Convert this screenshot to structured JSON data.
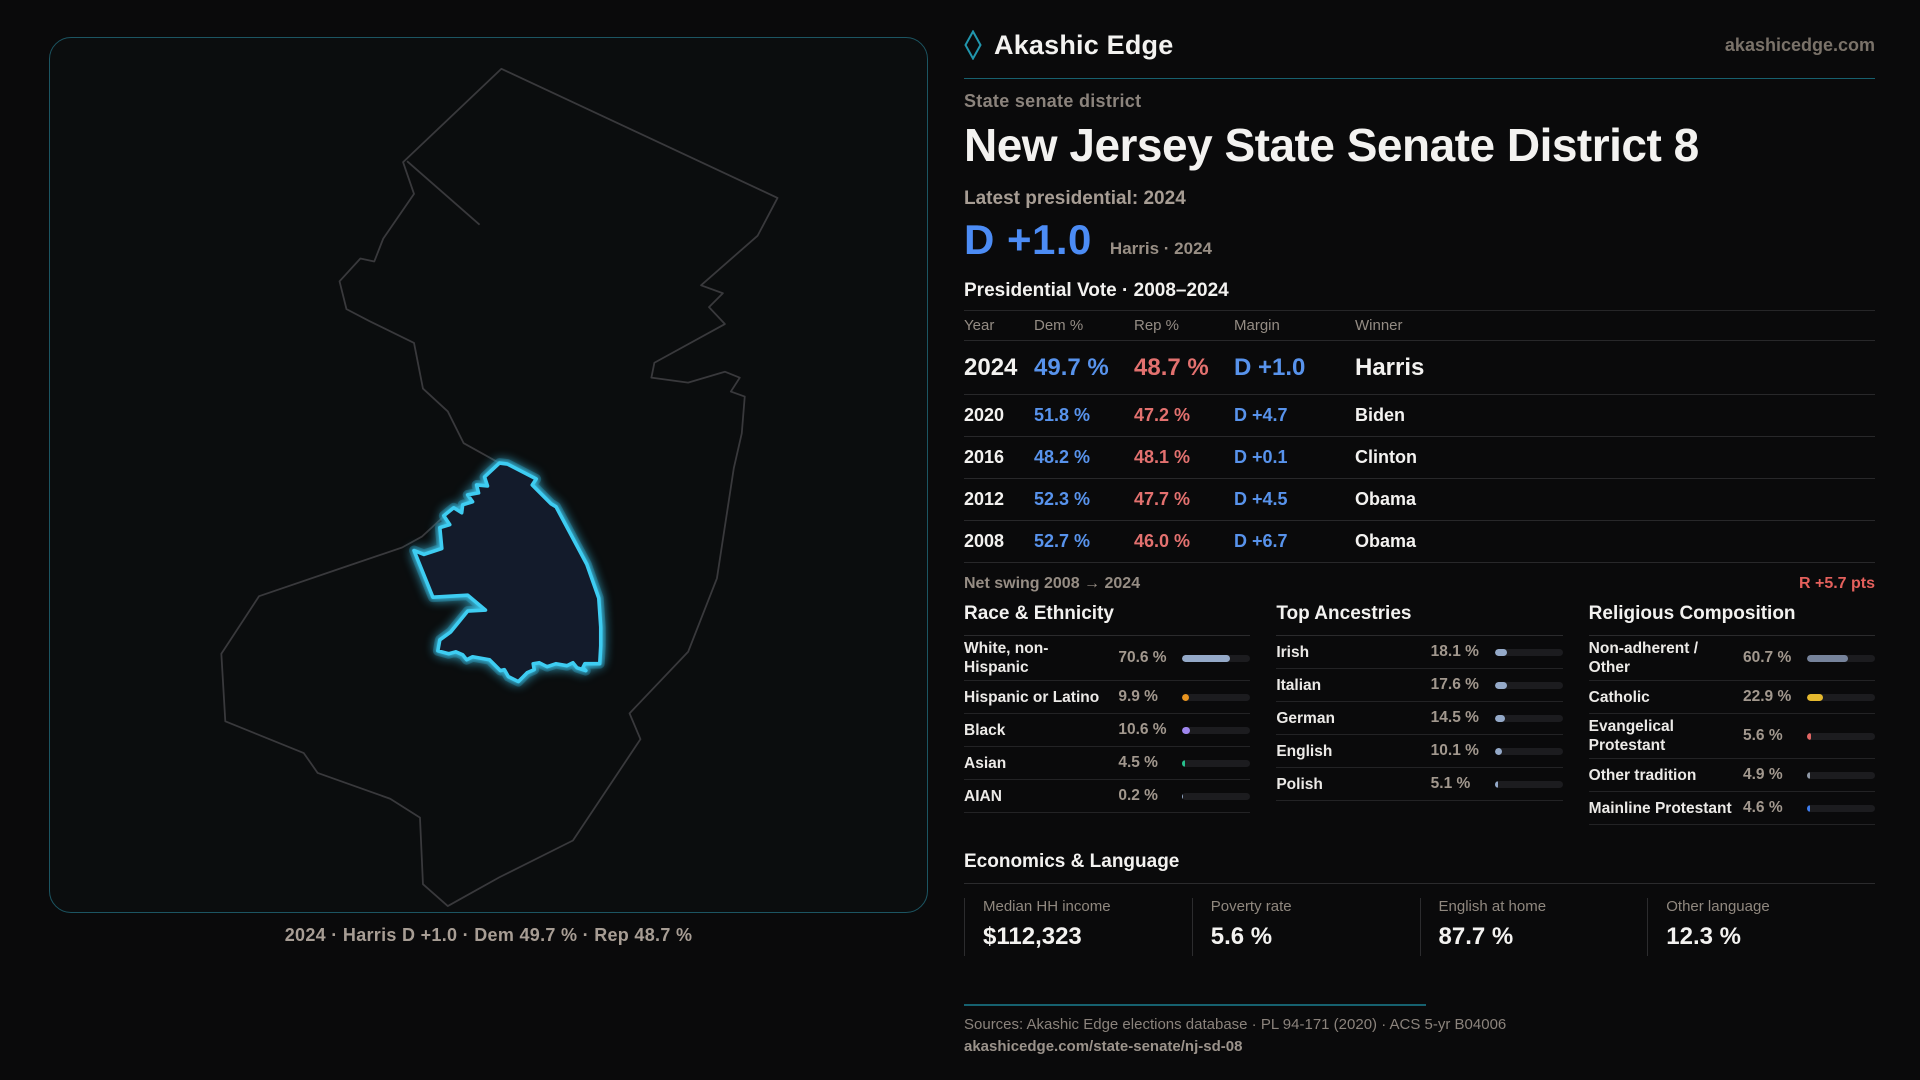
{
  "brand": {
    "logo": "diamond-icon",
    "name": "Akashic Edge",
    "site": "akashicedge.com"
  },
  "page": {
    "kicker": "State senate district",
    "title": "New Jersey State Senate District 8"
  },
  "headline": {
    "label": "Latest presidential: 2024",
    "margin": "D +1.0",
    "sub": "Harris · 2024"
  },
  "table": {
    "title": "Presidential Vote · 2008–2024",
    "columns": {
      "year": "Year",
      "dem": "Dem %",
      "rep": "Rep %",
      "margin": "Margin",
      "winner": "Winner"
    },
    "rows": [
      {
        "year": "2024",
        "dem": "49.7 %",
        "rep": "48.7 %",
        "margin": "D +1.0",
        "winner": "Harris"
      },
      {
        "year": "2020",
        "dem": "51.8 %",
        "rep": "47.2 %",
        "margin": "D +4.7",
        "winner": "Biden"
      },
      {
        "year": "2016",
        "dem": "48.2 %",
        "rep": "48.1 %",
        "margin": "D +0.1",
        "winner": "Clinton"
      },
      {
        "year": "2012",
        "dem": "52.3 %",
        "rep": "47.7 %",
        "margin": "D +4.5",
        "winner": "Obama"
      },
      {
        "year": "2008",
        "dem": "52.7 %",
        "rep": "46.0 %",
        "margin": "D +6.7",
        "winner": "Obama"
      }
    ]
  },
  "net_swing": {
    "label": "Net swing 2008 → 2024",
    "value": "R +5.7 pts"
  },
  "race": {
    "title": "Race & Ethnicity",
    "rows": [
      {
        "label": "White, non-Hispanic",
        "value": "70.6 %",
        "pct": 70.6,
        "color": "#94a9c8"
      },
      {
        "label": "Hispanic or Latino",
        "value": "9.9 %",
        "pct": 9.9,
        "color": "#e8941f"
      },
      {
        "label": "Black",
        "value": "10.6 %",
        "pct": 10.6,
        "color": "#9f86ee"
      },
      {
        "label": "Asian",
        "value": "4.5 %",
        "pct": 4.5,
        "color": "#27c08d"
      },
      {
        "label": "AIAN",
        "value": "0.2 %",
        "pct": 0.2,
        "color": "#94a9c8"
      }
    ]
  },
  "ancestries": {
    "title": "Top Ancestries",
    "rows": [
      {
        "label": "Irish",
        "value": "18.1 %",
        "pct": 18.1,
        "color": "#94a9c8"
      },
      {
        "label": "Italian",
        "value": "17.6 %",
        "pct": 17.6,
        "color": "#94a9c8"
      },
      {
        "label": "German",
        "value": "14.5 %",
        "pct": 14.5,
        "color": "#94a9c8"
      },
      {
        "label": "English",
        "value": "10.1 %",
        "pct": 10.1,
        "color": "#94a9c8"
      },
      {
        "label": "Polish",
        "value": "5.1 %",
        "pct": 5.1,
        "color": "#94a9c8"
      }
    ]
  },
  "religion": {
    "title": "Religious Composition",
    "rows": [
      {
        "label": "Non-adherent / Other",
        "value": "60.7 %",
        "pct": 60.7,
        "color": "#76839b"
      },
      {
        "label": "Catholic",
        "value": "22.9 %",
        "pct": 22.9,
        "color": "#e5b92e"
      },
      {
        "label": "Evangelical Protestant",
        "value": "5.6 %",
        "pct": 5.6,
        "color": "#e06563"
      },
      {
        "label": "Other tradition",
        "value": "4.9 %",
        "pct": 4.9,
        "color": "#8f98a6"
      },
      {
        "label": "Mainline Protestant",
        "value": "4.6 %",
        "pct": 4.6,
        "color": "#3d7ced"
      }
    ]
  },
  "economics": {
    "title": "Economics & Language",
    "stats": [
      {
        "label": "Median HH income",
        "value": "$112,323"
      },
      {
        "label": "Poverty rate",
        "value": "5.6 %"
      },
      {
        "label": "English at home",
        "value": "87.7 %"
      },
      {
        "label": "Other language",
        "value": "12.3 %"
      }
    ]
  },
  "map": {
    "caption": "2024 · Harris D +1.0 · Dem 49.7 % · Rep 48.7 %",
    "district_color": "#3ecdf2",
    "state": "New Jersey"
  },
  "footer": {
    "sources": "Sources: Akashic Edge elections database · PL 94-171 (2020) · ACS 5-yr B04006",
    "url": "akashicedge.com/state-senate/nj-sd-08"
  },
  "chart_data": [
    {
      "type": "table",
      "title": "Presidential Vote · 2008–2024",
      "columns": [
        "Year",
        "Dem %",
        "Rep %",
        "Margin",
        "Winner"
      ],
      "rows": [
        [
          "2024",
          49.7,
          48.7,
          "D +1.0",
          "Harris"
        ],
        [
          "2020",
          51.8,
          47.2,
          "D +4.7",
          "Biden"
        ],
        [
          "2016",
          48.2,
          48.1,
          "D +0.1",
          "Clinton"
        ],
        [
          "2012",
          52.3,
          47.7,
          "D +4.5",
          "Obama"
        ],
        [
          "2008",
          52.7,
          46.0,
          "D +6.7",
          "Obama"
        ]
      ],
      "annotations": [
        "Net swing 2008 → 2024: R +5.7 pts",
        "Latest presidential 2024: D +1.0 (Harris)"
      ]
    },
    {
      "type": "bar",
      "title": "Race & Ethnicity",
      "categories": [
        "White, non-Hispanic",
        "Hispanic or Latino",
        "Black",
        "Asian",
        "AIAN"
      ],
      "values": [
        70.6,
        9.9,
        10.6,
        4.5,
        0.2
      ],
      "unit": "%",
      "xlim": [
        0,
        100
      ],
      "orientation": "horizontal"
    },
    {
      "type": "bar",
      "title": "Top Ancestries",
      "categories": [
        "Irish",
        "Italian",
        "German",
        "English",
        "Polish"
      ],
      "values": [
        18.1,
        17.6,
        14.5,
        10.1,
        5.1
      ],
      "unit": "%",
      "xlim": [
        0,
        100
      ],
      "orientation": "horizontal"
    },
    {
      "type": "bar",
      "title": "Religious Composition",
      "categories": [
        "Non-adherent / Other",
        "Catholic",
        "Evangelical Protestant",
        "Other tradition",
        "Mainline Protestant"
      ],
      "values": [
        60.7,
        22.9,
        5.6,
        4.9,
        4.6
      ],
      "unit": "%",
      "xlim": [
        0,
        100
      ],
      "orientation": "horizontal"
    },
    {
      "type": "table",
      "title": "Economics & Language",
      "columns": [
        "Median HH income",
        "Poverty rate",
        "English at home",
        "Other language"
      ],
      "rows": [
        [
          "$112,323",
          "5.6 %",
          "87.7 %",
          "12.3 %"
        ]
      ]
    }
  ]
}
